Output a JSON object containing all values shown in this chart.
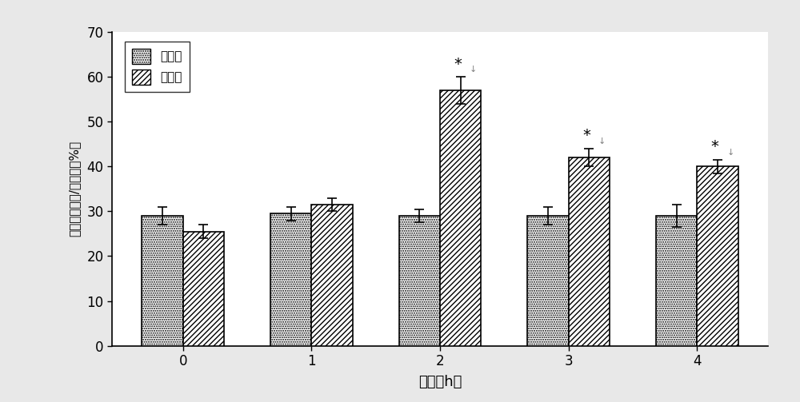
{
  "time_points": [
    0,
    1,
    2,
    3,
    4
  ],
  "control_values": [
    29.0,
    29.5,
    29.0,
    29.0,
    29.0
  ],
  "control_errors": [
    2.0,
    1.5,
    1.5,
    2.0,
    2.5
  ],
  "treatment_values": [
    25.5,
    31.5,
    57.0,
    42.0,
    40.0
  ],
  "treatment_errors": [
    1.5,
    1.5,
    3.0,
    2.0,
    1.5
  ],
  "xlabel": "时间（h）",
  "ylabel": "磷脂氧化效率/存活率（%）",
  "ylim": [
    0,
    70
  ],
  "yticks": [
    0,
    10,
    20,
    30,
    40,
    50,
    60,
    70
  ],
  "legend_control": "对照组",
  "legend_treatment": "处理组",
  "bar_width": 0.32,
  "significant_marks": [
    2,
    3,
    4
  ],
  "background_color": "#e8e8e8",
  "plot_bg_color": "#ffffff"
}
